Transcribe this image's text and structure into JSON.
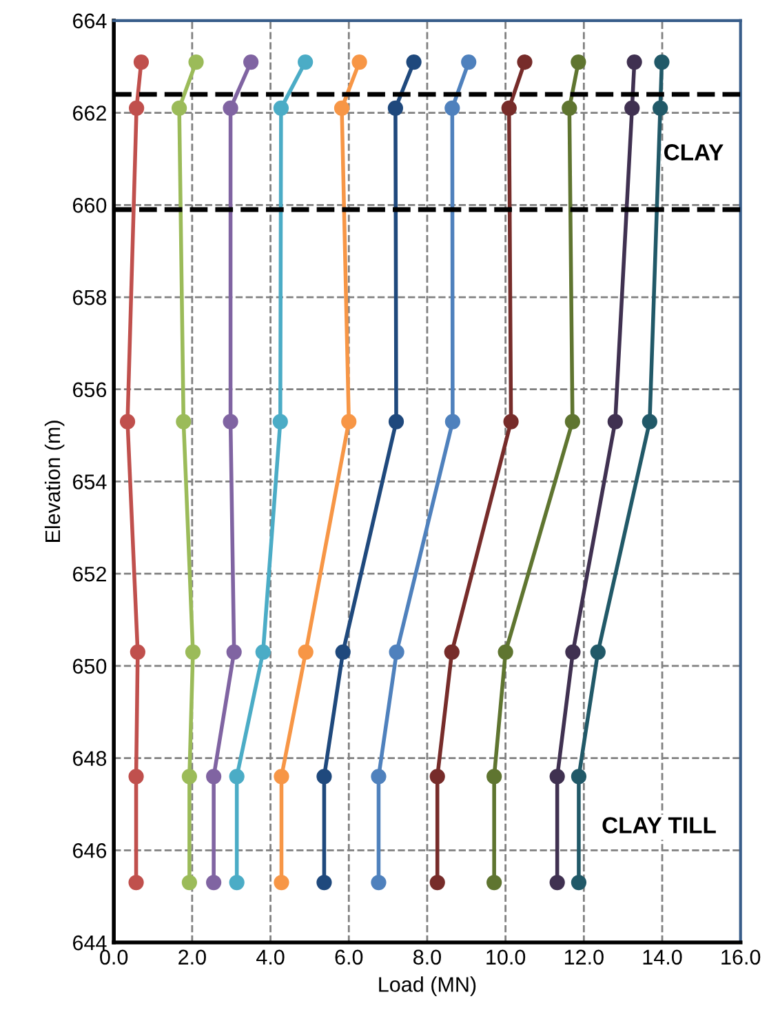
{
  "chart_data": {
    "type": "line",
    "xlabel": "Load (MN)",
    "ylabel": "Elevation (m)",
    "xlim": [
      0,
      16
    ],
    "ylim": [
      644,
      664
    ],
    "xticks": [
      {
        "value": 0,
        "label": "0.0"
      },
      {
        "value": 2,
        "label": "2.0"
      },
      {
        "value": 4,
        "label": "4.0"
      },
      {
        "value": 6,
        "label": "6.0"
      },
      {
        "value": 8,
        "label": "8.0"
      },
      {
        "value": 10,
        "label": "10.0"
      },
      {
        "value": 12,
        "label": "12.0"
      },
      {
        "value": 14,
        "label": "14.0"
      },
      {
        "value": 16,
        "label": "16.0"
      }
    ],
    "yticks": [
      644,
      646,
      648,
      650,
      652,
      654,
      656,
      658,
      660,
      662,
      664
    ],
    "grid": true,
    "marker": "circle",
    "line_style": "solid",
    "ref_lines": [
      {
        "axis": "y",
        "value": 662.4,
        "color": "#000000",
        "line_style": "dashed"
      },
      {
        "axis": "y",
        "value": 659.9,
        "color": "#000000",
        "line_style": "dashed"
      }
    ],
    "annotations": [
      "CLAY",
      "CLAY TILL"
    ],
    "series": [
      {
        "color": "#c0504d",
        "x": [
          0.7,
          0.58,
          0.35,
          0.61,
          0.57,
          0.57
        ],
        "values": [
          663.1,
          662.1,
          655.3,
          650.3,
          647.6,
          645.3
        ]
      },
      {
        "color": "#9bbb59",
        "x": [
          2.1,
          1.67,
          1.78,
          2.02,
          1.93,
          1.93
        ],
        "values": [
          663.1,
          662.1,
          655.3,
          650.3,
          647.6,
          645.3
        ]
      },
      {
        "color": "#8064a2",
        "x": [
          3.5,
          2.98,
          2.98,
          3.07,
          2.55,
          2.55
        ],
        "values": [
          663.1,
          662.1,
          655.3,
          650.3,
          647.6,
          645.3
        ]
      },
      {
        "color": "#4bacc6",
        "x": [
          4.89,
          4.27,
          4.25,
          3.81,
          3.14,
          3.14
        ],
        "values": [
          663.1,
          662.1,
          655.3,
          650.3,
          647.6,
          645.3
        ]
      },
      {
        "color": "#f79646",
        "x": [
          6.27,
          5.82,
          6.0,
          4.9,
          4.28,
          4.28
        ],
        "values": [
          663.1,
          662.1,
          655.3,
          650.3,
          647.6,
          645.3
        ]
      },
      {
        "color": "#1f497d",
        "x": [
          7.66,
          7.19,
          7.21,
          5.85,
          5.37,
          5.37
        ],
        "values": [
          663.1,
          662.1,
          655.3,
          650.3,
          647.6,
          645.3
        ]
      },
      {
        "color": "#4f81bd",
        "x": [
          9.06,
          8.64,
          8.65,
          7.22,
          6.76,
          6.76
        ],
        "values": [
          663.1,
          662.1,
          655.3,
          650.3,
          647.6,
          645.3
        ]
      },
      {
        "color": "#772c2a",
        "x": [
          10.49,
          10.09,
          10.14,
          8.63,
          8.26,
          8.26
        ],
        "values": [
          663.1,
          662.1,
          655.3,
          650.3,
          647.6,
          645.3
        ]
      },
      {
        "color": "#5f7530",
        "x": [
          11.86,
          11.63,
          11.71,
          10.0,
          9.71,
          9.71
        ],
        "values": [
          663.1,
          662.1,
          655.3,
          650.3,
          647.6,
          645.3
        ]
      },
      {
        "color": "#403151",
        "x": [
          13.29,
          13.23,
          12.8,
          11.72,
          11.32,
          11.32
        ],
        "values": [
          663.1,
          662.1,
          655.3,
          650.3,
          647.6,
          645.3
        ]
      },
      {
        "color": "#215968",
        "x": [
          13.99,
          13.95,
          13.68,
          12.36,
          11.87,
          11.87
        ],
        "values": [
          663.1,
          662.1,
          655.3,
          650.3,
          647.6,
          645.3
        ]
      }
    ]
  }
}
